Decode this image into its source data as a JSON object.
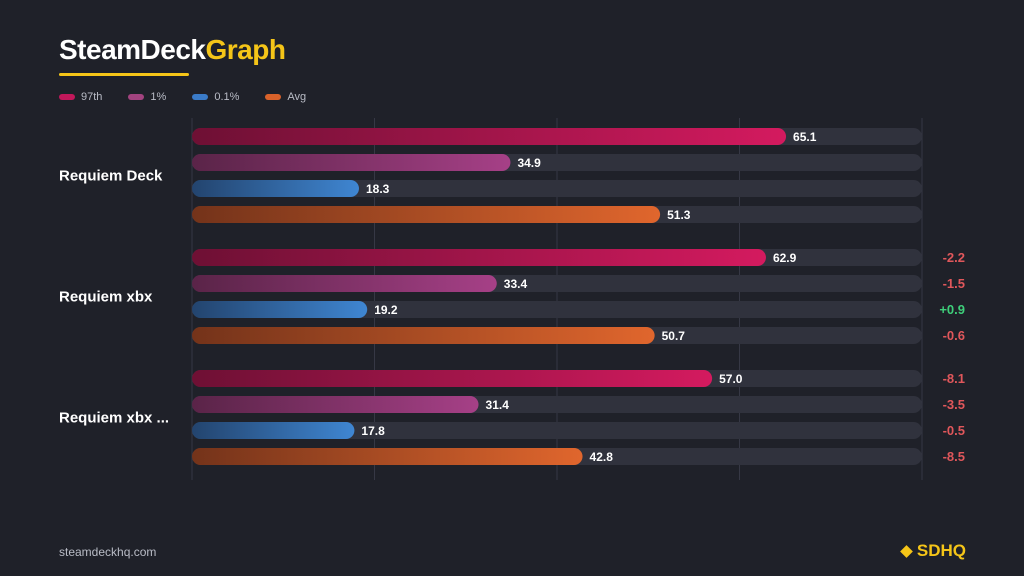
{
  "brand": {
    "part1": "SteamDeck",
    "part2": "Graph"
  },
  "legend": [
    {
      "label": "97th",
      "color": "#c2185b"
    },
    {
      "label": "1%",
      "color": "#a2437f"
    },
    {
      "label": "0.1%",
      "color": "#3a7bc8"
    },
    {
      "label": "Avg",
      "color": "#d9622a"
    }
  ],
  "colors": {
    "series_start": [
      "#6e1034",
      "#5a2448",
      "#23446e",
      "#74331a"
    ],
    "series_end": [
      "#d41a5f",
      "#a64087",
      "#3f86d2",
      "#e0662d"
    ],
    "track": "#30323d",
    "positive": "#3ecf7a",
    "negative": "#e0575b",
    "grid": "#363845"
  },
  "chart_data": {
    "type": "bar",
    "orientation": "horizontal",
    "xlim": [
      0,
      80
    ],
    "grid": true,
    "series_names": [
      "97th",
      "1%",
      "0.1%",
      "Avg"
    ],
    "groups": [
      {
        "name": "Requiem Deck",
        "values": [
          65.1,
          34.9,
          18.3,
          51.3
        ],
        "value_labels": [
          "65.1",
          "34.9",
          "18.3",
          "51.3"
        ],
        "deltas": null
      },
      {
        "name": "Requiem xbx",
        "values": [
          62.9,
          33.4,
          19.2,
          50.7
        ],
        "value_labels": [
          "62.9",
          "33.4",
          "19.2",
          "50.7"
        ],
        "deltas": [
          "-2.2",
          "-1.5",
          "+0.9",
          "-0.6"
        ]
      },
      {
        "name": "Requiem xbx ...",
        "values": [
          57.0,
          31.4,
          17.8,
          42.8
        ],
        "value_labels": [
          "57.0",
          "31.4",
          "17.8",
          "42.8"
        ],
        "deltas": [
          "-8.1",
          "-3.5",
          "-0.5",
          "-8.5"
        ]
      }
    ]
  },
  "footer": {
    "url": "steamdeckhq.com",
    "logo": "SDHQ"
  }
}
